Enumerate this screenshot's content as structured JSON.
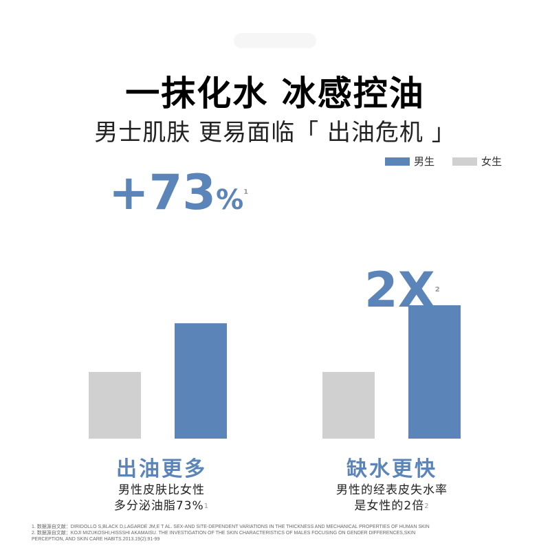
{
  "header": {
    "title": "一抹化水 冰感控油",
    "subtitle": "男士肌肤 更易面临「 出油危机 」"
  },
  "legend": {
    "male": "男生",
    "female": "女生"
  },
  "colors": {
    "male": "#5b84b8",
    "female": "#d0d0d0",
    "accent": "#5b84b8"
  },
  "stats": {
    "oil_value": "+73",
    "oil_unit": "%",
    "oil_ref": "1",
    "water_value": "2X",
    "water_ref": "2"
  },
  "captions": {
    "oil_head": "出油更多",
    "oil_line1": "男性皮肤比女性",
    "oil_line2": "多分泌油脂73%",
    "oil_ref": "1",
    "water_head": "缺水更快",
    "water_line1": "男性的经表皮失水率",
    "water_line2": "是女性的2倍",
    "water_ref": "2"
  },
  "footnotes": {
    "line1": "1. 数据源自文献：DIRIDOLLO S,BLACK D,LAGARDE JM,E T AL. SEX-AND SITE-DEPENDENT VARIATIONS IN THE THICKNESS AND MECHANICAL PROPERTIES OF HUMAN SKIN",
    "line2": "2. 数据源自文献：KOJI MIZUKOSHI,HISSSHI AKAMAISU. THE INVESTIGATION OF THE SKIN CHARACTERISTICS OF MALES FOCUSING ON GENDER DIFFERENCES,SKIN",
    "line3": "PERCEPTION, AND SKIN CARE HABITS.2013.19(2):91-99"
  },
  "chart_data": [
    {
      "type": "bar",
      "categories": [
        "出油更多"
      ],
      "series": [
        {
          "name": "女生",
          "values": [
            1
          ]
        },
        {
          "name": "男生",
          "values": [
            1.73
          ]
        }
      ],
      "annotation": "+73%"
    },
    {
      "type": "bar",
      "categories": [
        "缺水更快"
      ],
      "series": [
        {
          "name": "女生",
          "values": [
            1
          ]
        },
        {
          "name": "男生",
          "values": [
            2
          ]
        }
      ],
      "annotation": "2X"
    }
  ]
}
